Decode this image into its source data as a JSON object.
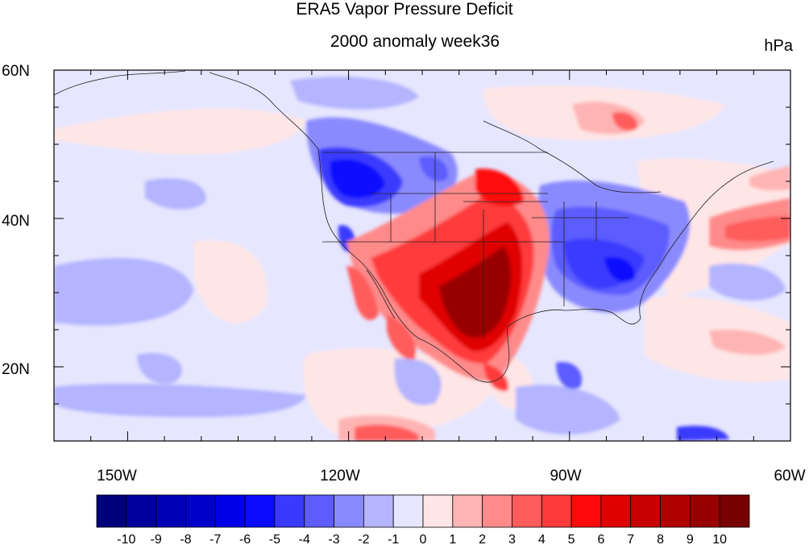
{
  "title": "ERA5 Vapor Pressure Deficit",
  "subtitle": "2000 anomaly week36",
  "units": "hPa",
  "map": {
    "lon_range": [
      -160,
      -60
    ],
    "lat_range": [
      10,
      60
    ],
    "lat_labels": [
      "60N",
      "40N",
      "20N"
    ],
    "lon_labels": [
      "150W",
      "120W",
      "90W",
      "60W"
    ]
  },
  "colorbar": {
    "labels": [
      "-10",
      "-9",
      "-8",
      "-7",
      "-6",
      "-5",
      "-4",
      "-3",
      "-2",
      "-1",
      "0",
      "1",
      "2",
      "3",
      "4",
      "5",
      "6",
      "7",
      "8",
      "9",
      "10"
    ],
    "colors": [
      "#00007a",
      "#00009c",
      "#0000b4",
      "#0000cc",
      "#0000e6",
      "#0a0aff",
      "#3a3aff",
      "#5c5cff",
      "#8a8aff",
      "#b4b4ff",
      "#e6e6ff",
      "#ffe6e6",
      "#ffb4b4",
      "#ff8a8a",
      "#ff5c5c",
      "#ff3a3a",
      "#ff0a0a",
      "#e00000",
      "#c80000",
      "#b00000",
      "#980000",
      "#780000"
    ]
  }
}
